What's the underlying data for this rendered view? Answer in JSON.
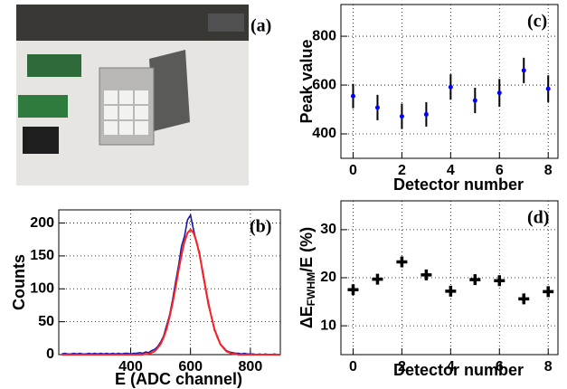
{
  "photo_label": "(a)",
  "chart_data": [
    {
      "type": "line",
      "panel_label": "(b)",
      "xlabel": "E (ADC channel)",
      "ylabel": "Counts",
      "xlim": [
        160,
        900
      ],
      "ylim": [
        0,
        220
      ],
      "xticks": [
        400,
        600,
        800
      ],
      "yticks": [
        0,
        50,
        100,
        150,
        200
      ],
      "grid": true,
      "x": [
        170,
        180,
        190,
        200,
        210,
        220,
        230,
        240,
        250,
        260,
        270,
        280,
        290,
        300,
        310,
        320,
        330,
        340,
        350,
        360,
        370,
        380,
        390,
        400,
        410,
        420,
        430,
        440,
        450,
        460,
        470,
        480,
        490,
        500,
        510,
        520,
        530,
        540,
        550,
        560,
        570,
        580,
        590,
        600,
        610,
        620,
        630,
        640,
        650,
        660,
        670,
        680,
        690,
        700,
        710,
        720,
        730,
        740,
        750,
        760,
        770,
        780,
        790,
        800,
        810,
        820,
        830,
        840,
        850,
        860,
        870,
        880,
        890,
        900
      ],
      "series": [
        {
          "color": "#1a1aa8",
          "values": [
            1,
            2,
            1,
            1,
            2,
            1,
            2,
            1,
            1,
            2,
            1,
            2,
            1,
            2,
            1,
            2,
            1,
            2,
            1,
            2,
            1,
            2,
            2,
            1,
            2,
            2,
            3,
            2,
            4,
            3,
            6,
            8,
            12,
            19,
            28,
            44,
            60,
            83,
            110,
            135,
            165,
            180,
            205,
            212,
            190,
            170,
            155,
            125,
            100,
            75,
            58,
            37,
            28,
            15,
            11,
            6,
            4,
            3,
            2,
            2,
            1,
            2,
            1,
            1,
            1,
            0,
            1,
            0,
            1,
            0,
            0,
            1,
            0,
            0
          ]
        },
        {
          "color": "#ff2020",
          "values": [
            0,
            0,
            0,
            0,
            0,
            0,
            0,
            0,
            0,
            0,
            0,
            0,
            0,
            0,
            0,
            0,
            0,
            0,
            0,
            0,
            0,
            0,
            0,
            0,
            0,
            0,
            0,
            0,
            1,
            1,
            3,
            5,
            10,
            16,
            26,
            39,
            57,
            78,
            102,
            128,
            152,
            172,
            185,
            190,
            185,
            172,
            152,
            128,
            102,
            78,
            57,
            39,
            26,
            16,
            10,
            5,
            3,
            1,
            1,
            0,
            0,
            0,
            0,
            0,
            0,
            0,
            0,
            0,
            0,
            0,
            0,
            0,
            0,
            0
          ]
        }
      ]
    },
    {
      "type": "errorbar",
      "panel_label": "(c)",
      "xlabel": "Detector number",
      "ylabel": "Peak value",
      "xlim": [
        -0.5,
        8.4
      ],
      "ylim": [
        300,
        930
      ],
      "xticks": [
        0,
        2,
        4,
        6,
        8
      ],
      "yticks": [
        400,
        600,
        800
      ],
      "grid": true,
      "x": [
        0,
        1,
        2,
        3,
        4,
        5,
        6,
        7,
        8
      ],
      "series": [
        {
          "color": "#0000ff",
          "error_color": "#000000",
          "values": [
            555,
            508,
            472,
            480,
            592,
            537,
            568,
            660,
            585
          ],
          "errors": [
            50,
            52,
            52,
            50,
            52,
            52,
            57,
            52,
            55
          ]
        }
      ]
    },
    {
      "type": "scatter",
      "panel_label": "(d)",
      "xlabel": "Detector number",
      "ylabel": "ΔE",
      "ylabel_sub": "FWHM",
      "ylabel_suffix": "/E (%)",
      "xlim": [
        -0.5,
        8.4
      ],
      "ylim": [
        4,
        36
      ],
      "xticks": [
        0,
        2,
        4,
        6,
        8
      ],
      "yticks": [
        10,
        20,
        30
      ],
      "grid": true,
      "x": [
        0,
        1,
        2,
        3,
        4,
        5,
        6,
        7,
        8
      ],
      "series": [
        {
          "color": "#000000",
          "marker": "cross",
          "values": [
            17.5,
            19.7,
            23.3,
            20.6,
            17.2,
            19.6,
            19.4,
            15.6,
            17.1
          ]
        }
      ]
    }
  ]
}
